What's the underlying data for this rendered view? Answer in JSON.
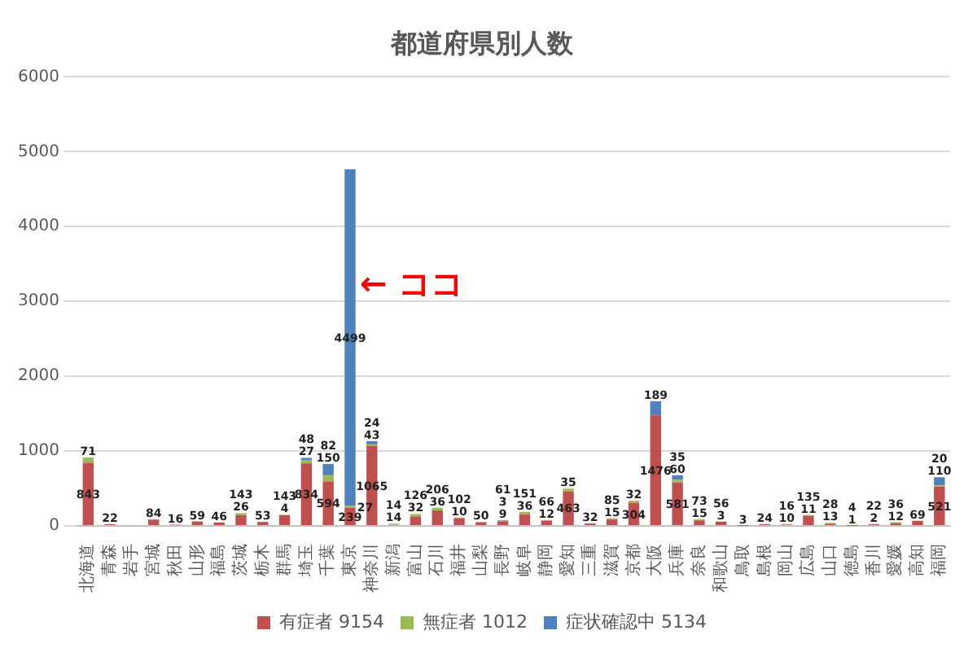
{
  "chart_data": {
    "type": "bar",
    "title": "都道府県別人数",
    "stacked": true,
    "data_labels": true,
    "grid": "y",
    "legend": "bottom",
    "categories": [
      "北海道",
      "青森",
      "岩手",
      "宮城",
      "秋田",
      "山形",
      "福島",
      "茨城",
      "栃木",
      "群馬",
      "埼玉",
      "千葉",
      "東京",
      "神奈川",
      "新潟",
      "富山",
      "石川",
      "福井",
      "山梨",
      "長野",
      "岐阜",
      "静岡",
      "愛知",
      "三重",
      "滋賀",
      "京都",
      "大阪",
      "兵庫",
      "奈良",
      "和歌山",
      "鳥取",
      "島根",
      "岡山",
      "広島",
      "山口",
      "徳島",
      "香川",
      "愛媛",
      "高知",
      "福岡"
    ],
    "series": [
      {
        "name": "有症者 9154",
        "color": "#c0504d",
        "values": [
          843,
          22,
          null,
          84,
          16,
          59,
          46,
          143,
          53,
          143,
          834,
          594,
          239,
          1065,
          14,
          126,
          206,
          102,
          50,
          61,
          151,
          66,
          463,
          32,
          85,
          304,
          1476,
          581,
          73,
          56,
          3,
          24,
          16,
          135,
          28,
          4,
          22,
          36,
          69,
          521
        ]
      },
      {
        "name": "無症者 1012",
        "color": "#9bbb59",
        "values": [
          71,
          null,
          null,
          null,
          null,
          null,
          null,
          26,
          null,
          4,
          48,
          82,
          27,
          24,
          14,
          32,
          36,
          10,
          null,
          3,
          36,
          12,
          35,
          null,
          15,
          32,
          null,
          35,
          15,
          3,
          null,
          null,
          10,
          11,
          13,
          1,
          2,
          12,
          null,
          20
        ]
      },
      {
        "name": "症状確認中 5134",
        "color": "#4f81bd",
        "values": [
          null,
          null,
          null,
          null,
          null,
          null,
          null,
          null,
          null,
          null,
          27,
          150,
          4499,
          43,
          null,
          null,
          null,
          null,
          null,
          9,
          null,
          null,
          null,
          null,
          null,
          null,
          189,
          60,
          null,
          null,
          null,
          null,
          null,
          null,
          null,
          null,
          null,
          null,
          null,
          110
        ]
      }
    ],
    "ylim": [
      0,
      6000
    ],
    "yticks": [
      0,
      1000,
      2000,
      3000,
      4000,
      5000,
      6000
    ],
    "annotations": [
      {
        "text": "← ココ",
        "x": "東京",
        "y": 3200
      }
    ]
  }
}
